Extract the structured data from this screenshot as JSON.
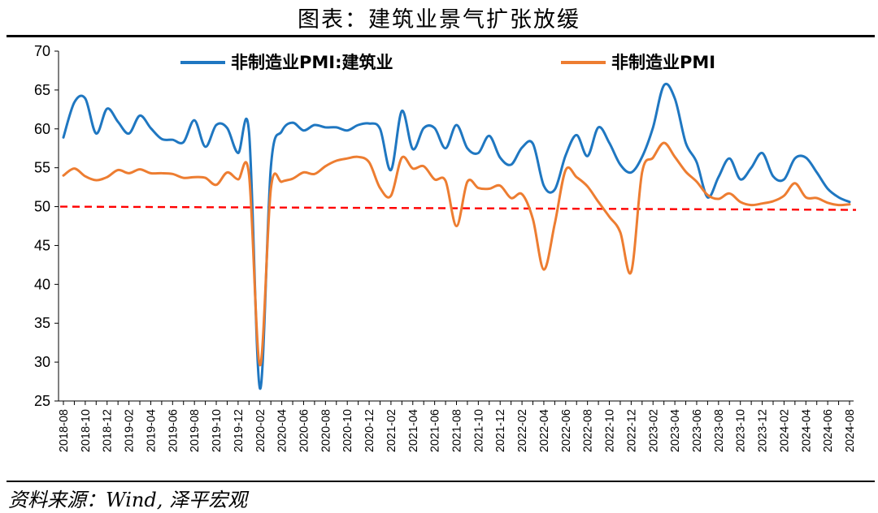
{
  "header": {
    "title": "图表：建筑业景气扩张放缓"
  },
  "footer": {
    "source": "资料来源：Wind, 泽平宏观"
  },
  "chart_data": {
    "type": "line",
    "title": "图表：建筑业景气扩张放缓",
    "xlabel": "",
    "ylabel": "",
    "ylim": [
      25,
      70
    ],
    "yticks": [
      25,
      30,
      35,
      40,
      45,
      50,
      55,
      60,
      65,
      70
    ],
    "grid": false,
    "legend": "top",
    "reference_line": {
      "value": 50,
      "style": "dashed",
      "color": "#ff0000"
    },
    "colors": {
      "series1": "#1f77c1",
      "series2": "#ed7d31",
      "reference": "#ff0000"
    },
    "x_tick_labels": [
      "2018-08",
      "2018-10",
      "2018-12",
      "2019-02",
      "2019-04",
      "2019-06",
      "2019-08",
      "2019-10",
      "2019-12",
      "2020-02",
      "2020-04",
      "2020-06",
      "2020-08",
      "2020-10",
      "2020-12",
      "2021-02",
      "2021-04",
      "2021-06",
      "2021-08",
      "2021-10",
      "2021-12",
      "2022-02",
      "2022-04",
      "2022-06",
      "2022-08",
      "2022-10",
      "2022-12",
      "2023-02",
      "2023-04",
      "2023-06",
      "2023-08",
      "2023-10",
      "2023-12",
      "2024-02",
      "2024-04",
      "2024-06",
      "2024-08"
    ],
    "x": [
      "2018-08",
      "2018-09",
      "2018-10",
      "2018-11",
      "2018-12",
      "2019-01",
      "2019-02",
      "2019-03",
      "2019-04",
      "2019-05",
      "2019-06",
      "2019-07",
      "2019-08",
      "2019-09",
      "2019-10",
      "2019-11",
      "2019-12",
      "2020-01",
      "2020-02",
      "2020-03",
      "2020-04",
      "2020-05",
      "2020-06",
      "2020-07",
      "2020-08",
      "2020-09",
      "2020-10",
      "2020-11",
      "2020-12",
      "2021-01",
      "2021-02",
      "2021-03",
      "2021-04",
      "2021-05",
      "2021-06",
      "2021-07",
      "2021-08",
      "2021-09",
      "2021-10",
      "2021-11",
      "2021-12",
      "2022-01",
      "2022-02",
      "2022-03",
      "2022-04",
      "2022-05",
      "2022-06",
      "2022-07",
      "2022-08",
      "2022-09",
      "2022-10",
      "2022-11",
      "2022-12",
      "2023-01",
      "2023-02",
      "2023-03",
      "2023-04",
      "2023-05",
      "2023-06",
      "2023-07",
      "2023-08",
      "2023-09",
      "2023-10",
      "2023-11",
      "2023-12",
      "2024-01",
      "2024-02",
      "2024-03",
      "2024-04",
      "2024-05",
      "2024-06",
      "2024-07",
      "2024-08"
    ],
    "series": [
      {
        "name": "非制造业PMI:建筑业",
        "values": [
          58.9,
          63.4,
          63.9,
          59.4,
          62.6,
          60.9,
          59.4,
          61.7,
          60.1,
          58.7,
          58.6,
          58.3,
          61.1,
          57.7,
          60.5,
          60.1,
          56.9,
          59.6,
          26.6,
          55.1,
          59.7,
          60.8,
          59.8,
          60.5,
          60.2,
          60.2,
          59.8,
          60.5,
          60.7,
          60.0,
          54.7,
          62.3,
          57.4,
          60.1,
          60.1,
          57.5,
          60.5,
          57.5,
          56.9,
          59.1,
          56.3,
          55.4,
          57.6,
          58.1,
          52.7,
          52.2,
          56.6,
          59.2,
          56.5,
          60.2,
          58.2,
          55.4,
          54.4,
          56.4,
          60.2,
          65.6,
          63.9,
          58.2,
          55.7,
          51.2,
          53.8,
          56.2,
          53.5,
          55.0,
          56.9,
          53.9,
          53.5,
          56.2,
          56.3,
          54.4,
          52.3,
          51.2,
          50.6
        ]
      },
      {
        "name": "非制造业PMI",
        "values": [
          54.0,
          54.9,
          53.9,
          53.4,
          53.8,
          54.7,
          54.3,
          54.8,
          54.3,
          54.3,
          54.2,
          53.7,
          53.8,
          53.7,
          52.8,
          54.4,
          53.5,
          54.1,
          29.6,
          52.3,
          53.2,
          53.6,
          54.4,
          54.2,
          55.2,
          55.9,
          56.2,
          56.4,
          55.7,
          52.4,
          51.4,
          56.3,
          54.9,
          55.2,
          53.5,
          53.3,
          47.5,
          53.2,
          52.4,
          52.3,
          52.7,
          51.1,
          51.6,
          48.4,
          41.9,
          47.8,
          54.7,
          53.8,
          52.6,
          50.6,
          48.7,
          46.7,
          41.6,
          54.4,
          56.3,
          58.2,
          56.4,
          54.5,
          53.2,
          51.5,
          51.0,
          51.7,
          50.6,
          50.2,
          50.4,
          50.7,
          51.4,
          53.0,
          51.2,
          51.1,
          50.5,
          50.2,
          50.3
        ]
      }
    ]
  }
}
